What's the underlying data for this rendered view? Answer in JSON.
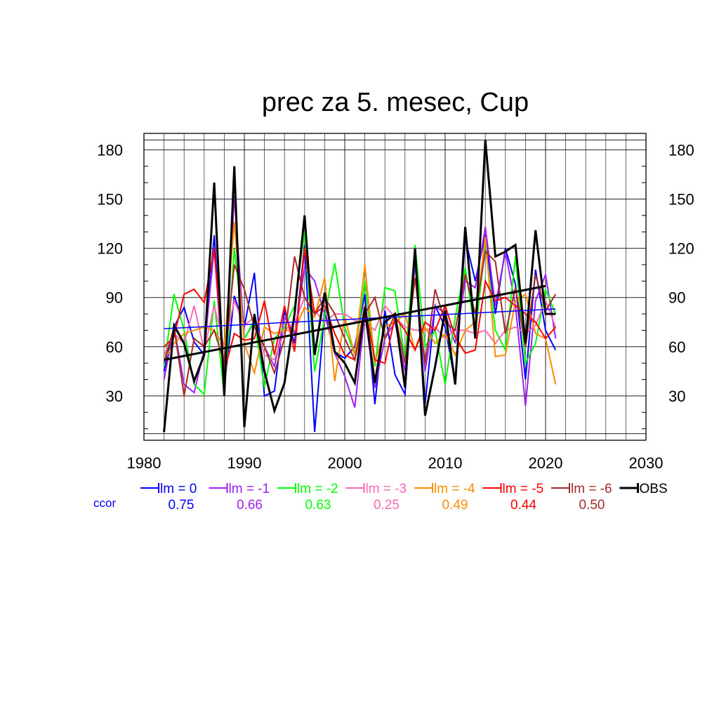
{
  "chart_data": {
    "type": "line",
    "title": "prec za 5. mesec, Cup",
    "xlabel": "",
    "ylabel": "",
    "xlim": [
      1980,
      2030
    ],
    "ylim": [
      3,
      190
    ],
    "x_ticks": [
      1980,
      1990,
      2000,
      2010,
      2020,
      2030
    ],
    "y_ticks": [
      30,
      60,
      90,
      120,
      150,
      180
    ],
    "grid": true,
    "legend_position": "bottom",
    "ccor_label": "ccor",
    "ccor_color": "#0000ff",
    "x": [
      1982,
      1983,
      1984,
      1985,
      1986,
      1987,
      1988,
      1989,
      1990,
      1991,
      1992,
      1993,
      1994,
      1995,
      1996,
      1997,
      1998,
      1999,
      2000,
      2001,
      2002,
      2003,
      2004,
      2005,
      2006,
      2007,
      2008,
      2009,
      2010,
      2011,
      2012,
      2013,
      2014,
      2015,
      2016,
      2017,
      2018,
      2019,
      2020,
      2021
    ],
    "series": [
      {
        "name": "lm = 0",
        "color": "#0000ff",
        "ccor": "0.75",
        "values": [
          45,
          72,
          84,
          63,
          55,
          128,
          35,
          91,
          72,
          105,
          30,
          33,
          82,
          62,
          122,
          8,
          82,
          57,
          53,
          60,
          92,
          25,
          82,
          43,
          31,
          120,
          25,
          85,
          72,
          38,
          126,
          100,
          128,
          80,
          120,
          98,
          40,
          107,
          70,
          58
        ],
        "trend": [
          [
            1982,
            71
          ],
          [
            2021,
            83
          ]
        ]
      },
      {
        "name": "lm = -1",
        "color": "#a020f0",
        "ccor": "0.66",
        "values": [
          40,
          72,
          37,
          32,
          58,
          120,
          35,
          152,
          65,
          75,
          60,
          48,
          78,
          68,
          108,
          100,
          80,
          56,
          42,
          23,
          80,
          35,
          65,
          75,
          45,
          110,
          45,
          85,
          80,
          62,
          100,
          96,
          133,
          85,
          118,
          85,
          24,
          88,
          104,
          65
        ],
        "trend": null
      },
      {
        "name": "lm = -2",
        "color": "#00ff00",
        "ccor": "0.63",
        "values": [
          48,
          92,
          70,
          37,
          31,
          88,
          30,
          120,
          65,
          76,
          35,
          65,
          72,
          85,
          130,
          45,
          78,
          111,
          72,
          55,
          100,
          48,
          96,
          94,
          52,
          122,
          60,
          70,
          37,
          78,
          108,
          68,
          122,
          70,
          58,
          115,
          50,
          62,
          95,
          80
        ],
        "trend": null
      },
      {
        "name": "lm = -3",
        "color": "#ff69b4",
        "ccor": "0.25",
        "values": [
          55,
          68,
          62,
          85,
          58,
          85,
          60,
          88,
          73,
          78,
          55,
          52,
          70,
          75,
          90,
          82,
          75,
          80,
          80,
          76,
          75,
          70,
          85,
          78,
          72,
          70,
          70,
          72,
          65,
          70,
          70,
          68,
          70,
          62,
          70,
          72,
          68,
          73,
          88,
          72
        ],
        "trend": null
      },
      {
        "name": "lm = -4",
        "color": "#ff8c00",
        "ccor": "0.49",
        "values": [
          52,
          62,
          68,
          70,
          72,
          70,
          60,
          136,
          62,
          44,
          72,
          68,
          70,
          70,
          84,
          78,
          102,
          39,
          78,
          55,
          110,
          50,
          72,
          75,
          80,
          58,
          72,
          62,
          68,
          55,
          70,
          75,
          127,
          54,
          55,
          88,
          92,
          68,
          65,
          37
        ],
        "trend": null
      },
      {
        "name": "lm = -5",
        "color": "#ff0000",
        "ccor": "0.44",
        "values": [
          60,
          66,
          92,
          95,
          87,
          120,
          45,
          68,
          64,
          65,
          88,
          55,
          85,
          57,
          120,
          80,
          85,
          68,
          55,
          52,
          85,
          52,
          50,
          78,
          70,
          58,
          75,
          70,
          85,
          66,
          56,
          58,
          100,
          88,
          90,
          85,
          80,
          75,
          65,
          72
        ],
        "trend": null
      },
      {
        "name": "lm = -6",
        "color": "#a52a2a",
        "ccor": "0.50",
        "values": [
          50,
          72,
          30,
          65,
          60,
          70,
          50,
          110,
          95,
          72,
          60,
          44,
          65,
          115,
          90,
          80,
          90,
          80,
          65,
          52,
          80,
          90,
          65,
          80,
          50,
          102,
          50,
          95,
          75,
          70,
          104,
          80,
          118,
          112,
          68,
          96,
          60,
          104,
          82,
          92
        ],
        "trend": null
      },
      {
        "name": "OBS",
        "color": "#000000",
        "ccor": "",
        "values": [
          8,
          73,
          62,
          39,
          55,
          160,
          30,
          170,
          11,
          80,
          45,
          21,
          38,
          80,
          140,
          55,
          93,
          57,
          50,
          38,
          84,
          38,
          75,
          80,
          35,
          120,
          18,
          48,
          82,
          37,
          133,
          65,
          186,
          115,
          118,
          122,
          62,
          131,
          80,
          80
        ],
        "trend": [
          [
            1982,
            52
          ],
          [
            2020,
            97
          ]
        ]
      }
    ]
  }
}
